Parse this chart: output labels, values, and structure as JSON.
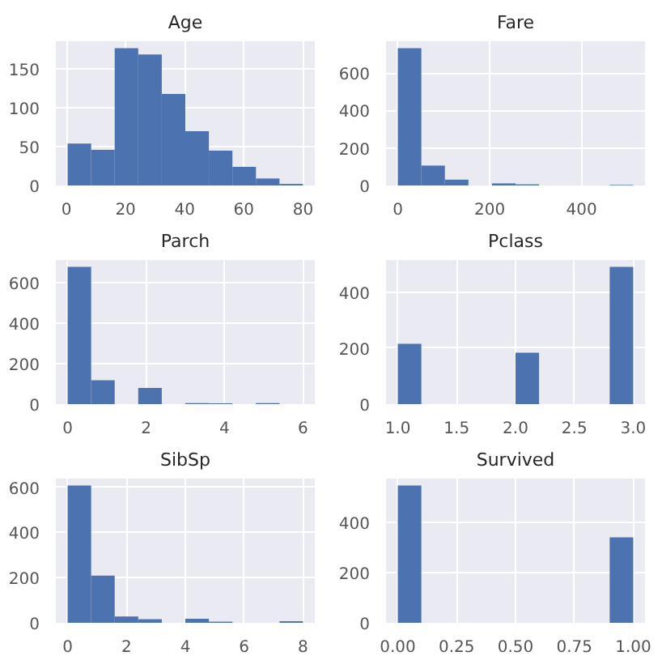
{
  "chart_data": [
    {
      "type": "histogram",
      "title": "Age",
      "bins": [
        0.42,
        8.378,
        16.336,
        24.294,
        32.252,
        40.21,
        48.168,
        56.126,
        64.084,
        72.042,
        80.0
      ],
      "values": [
        54,
        46,
        177,
        169,
        118,
        70,
        45,
        24,
        9,
        2
      ],
      "color": "#4c72b0",
      "xlim": [
        -3.56,
        83.98
      ],
      "ylim": [
        0,
        185.85
      ],
      "xticks": [
        0,
        20,
        40,
        60,
        80
      ],
      "yticks": [
        0,
        50,
        100,
        150
      ],
      "grid": true
    },
    {
      "type": "histogram",
      "title": "Fare",
      "bins": [
        0,
        51.2329,
        102.4658,
        153.6988,
        204.9317,
        256.1646,
        307.3975,
        358.6305,
        409.8634,
        461.0963,
        512.3292
      ],
      "values": [
        732,
        106,
        31,
        null,
        11,
        6,
        0,
        0,
        0,
        3
      ],
      "color": "#4c72b0",
      "xlim": [
        -25.6,
        537.9
      ],
      "ylim": [
        0,
        768.6
      ],
      "xticks": [
        0,
        200,
        400
      ],
      "yticks": [
        0,
        200,
        400,
        600
      ],
      "grid": true
    },
    {
      "type": "histogram",
      "title": "Parch",
      "bins": [
        0,
        0.6,
        1.2,
        1.8,
        2.4,
        3.0,
        3.6,
        4.2,
        4.8,
        5.4,
        6.0
      ],
      "values": [
        678,
        118,
        0,
        80,
        0,
        5,
        4,
        0,
        5,
        null
      ],
      "color": "#4c72b0",
      "xlim": [
        -0.3,
        6.3
      ],
      "ylim": [
        0,
        711.9
      ],
      "xticks": [
        0,
        2,
        4,
        6
      ],
      "yticks": [
        0,
        200,
        400,
        600
      ],
      "grid": true
    },
    {
      "type": "histogram",
      "title": "Pclass",
      "bins": [
        1.0,
        1.2,
        1.4,
        1.6,
        1.8,
        2.0,
        2.2,
        2.4,
        2.6,
        2.8,
        3.0
      ],
      "values": [
        216,
        0,
        0,
        0,
        0,
        184,
        0,
        0,
        0,
        491
      ],
      "color": "#4c72b0",
      "xlim": [
        0.9,
        3.1
      ],
      "ylim": [
        0,
        515.55
      ],
      "xticks": [
        {
          "value": 1.0,
          "label": "1.0"
        },
        {
          "value": 1.5,
          "label": "1.5"
        },
        {
          "value": 2.0,
          "label": "2.0"
        },
        {
          "value": 2.5,
          "label": "2.5"
        },
        {
          "value": 3.0,
          "label": "3.0"
        }
      ],
      "yticks": [
        0,
        200,
        400
      ],
      "grid": true
    },
    {
      "type": "histogram",
      "title": "SibSp",
      "bins": [
        0,
        0.8,
        1.6,
        2.4,
        3.2,
        4.0,
        4.8,
        5.6,
        6.4,
        7.2,
        8.0
      ],
      "values": [
        608,
        209,
        28,
        16,
        0,
        18,
        5,
        0,
        0,
        7
      ],
      "color": "#4c72b0",
      "xlim": [
        -0.4,
        8.4
      ],
      "ylim": [
        0,
        638.4
      ],
      "xticks": [
        0,
        2,
        4,
        6,
        8
      ],
      "yticks": [
        0,
        200,
        400,
        600
      ],
      "grid": true
    },
    {
      "type": "histogram",
      "title": "Survived",
      "bins": [
        0,
        0.1,
        0.2,
        0.3,
        0.4,
        0.5,
        0.6,
        0.7,
        0.8,
        0.9,
        1.0
      ],
      "values": [
        549,
        0,
        0,
        0,
        0,
        0,
        0,
        0,
        0,
        342
      ],
      "color": "#4c72b0",
      "xlim": [
        -0.05,
        1.05
      ],
      "ylim": [
        0,
        576.45
      ],
      "xticks": [
        {
          "value": 0.0,
          "label": "0.00"
        },
        {
          "value": 0.25,
          "label": "0.25"
        },
        {
          "value": 0.5,
          "label": "0.50"
        },
        {
          "value": 0.75,
          "label": "0.75"
        },
        {
          "value": 1.0,
          "label": "1.00"
        }
      ],
      "yticks": [
        0,
        200,
        400
      ],
      "grid": true
    }
  ]
}
